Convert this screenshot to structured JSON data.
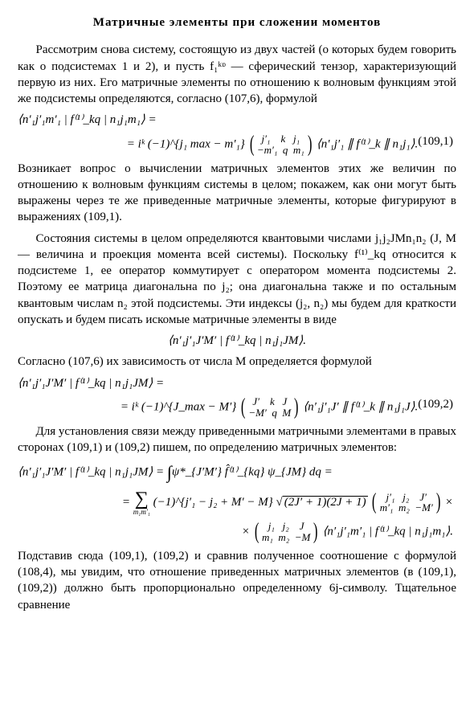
{
  "title": "Матричные элементы при сложении моментов",
  "p1": "Рассмотрим снова систему, состоящую из двух частей (о которых будем говорить как о подсистемах 1 и 2), и пусть f₁ᵏᶛ — сферический тензор, характеризующий первую из них. Его матричные элементы по отношению к волновым функциям этой же подсистемы определяются, согласно (107,6), формулой",
  "eq1_l1": "⟨n′₁j′₁m′₁ | f⁽¹⁾_kq | n₁j₁m₁⟩ =",
  "eq1_l2a": "= iᵏ (−1)^{j₁ max − m′₁}",
  "eq1_mat_top": "j′₁    k   j₁",
  "eq1_mat_bot": "−m′₁  q  m₁",
  "eq1_l2b": "⟨n′₁j′₁ ∥ f⁽¹⁾_k ∥ n₁j₁⟩.",
  "eq1_num": "(109,1)",
  "p2": "Возникает вопрос о вычислении матричных элементов этих же величин по отношению к волновым функциям системы в целом; покажем, как они могут быть выражены через те же приведенные матричные элементы, которые фигурируют в выражениях (109,1).",
  "p3a": "Состояния системы в целом определяются квантовыми числами j₁j₂JMn₁n₂ (J, M — величина и проекция момента всей системы). Поскольку f⁽¹⁾_kq относится к подсистеме 1, ее оператор коммутирует с оператором момента подсистемы 2. Поэтому ее матрица диагональна по j₂; она диагональна также и по остальным квантовым числам n₂ этой подсистемы. Эти индексы (j₂, n₂) мы будем для краткости опускать и будем писать искомые матричные элементы в виде",
  "eq_mid": "⟨n′₁j′₁J′M′ | f⁽¹⁾_kq | n₁j₁JM⟩.",
  "p4": "Согласно (107,6) их зависимость от числа M определяется формулой",
  "eq2_l1": "⟨n′₁j′₁J′M′ | f⁽¹⁾_kq | n₁j₁JM⟩ =",
  "eq2_l2a": "= iᵏ (−1)^{J_max − M′}",
  "eq2_mat_top": "J′    k   J",
  "eq2_mat_bot": "−M′  q  M",
  "eq2_l2b": "⟨n′₁j′₁J′ ∥ f⁽¹⁾_k ∥ n₁j₁J⟩.",
  "eq2_num": "(109,2)",
  "p5": "Для установления связи между приведенными матричными элементами в правых сторонах (109,1) и (109,2) пишем, по определению матричных элементов:",
  "eq3_l1a": "⟨n′₁j′₁J′M′ | f⁽¹⁾_kq | n₁j₁JM⟩ = ",
  "eq3_l1b": "ψ*_{J′M′} f̂⁽¹⁾_{kq} ψ_{JM} dq =",
  "eq3_l2a": "= ",
  "eq3_l2b": "(−1)^{j′₁ − j₂ + M′ − M} √",
  "eq3_sqrt": "(2J′ + 1)(2J + 1)",
  "eq3_mat1_top": "j′₁   j₂    J′",
  "eq3_mat1_bot": "m′₁  m₂  −M′",
  "eq3_l2c": " ×",
  "eq3_l3a": "× ",
  "eq3_mat2_top": "j₁   j₂    J",
  "eq3_mat2_bot": "m₁  m₂  −M",
  "eq3_l3b": " ⟨n′₁j′₁m′₁ | f⁽¹⁾_kq | n₁j₁m₁⟩.",
  "sum_sub": "m₁m′₁",
  "p6": "Подставив сюда (109,1), (109,2) и сравнив полученное соотношение с формулой (108,4), мы увидим, что отношение приведенных матричных элементов (в (109,1), (109,2)) должно быть пропорционально определенному 6j-символу. Тщательное сравнение"
}
